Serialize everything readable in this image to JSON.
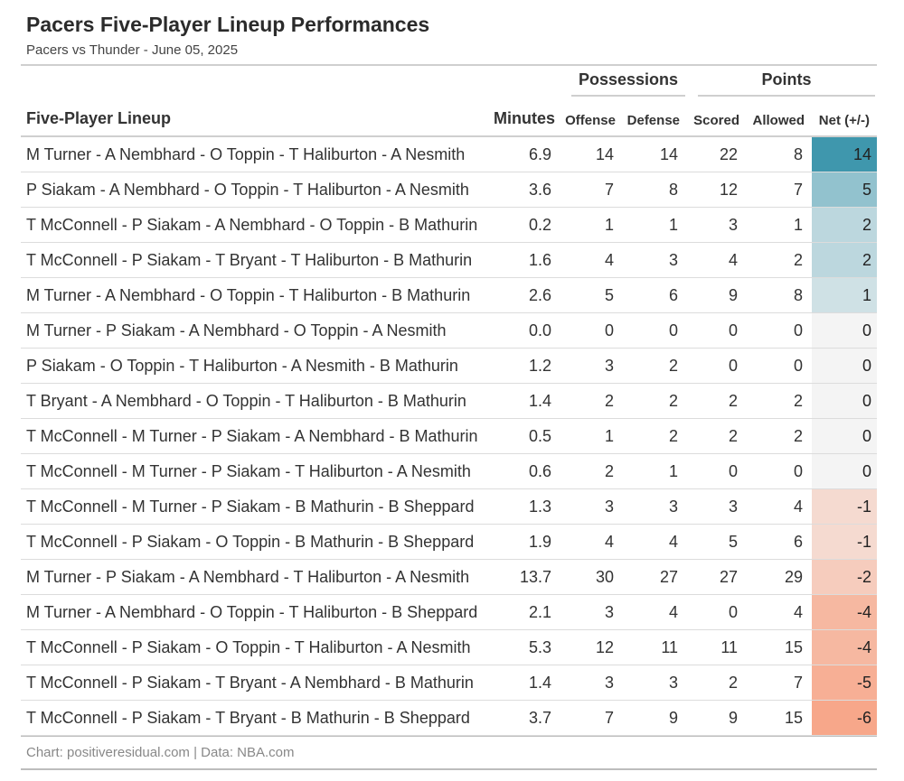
{
  "header": {
    "title": "Pacers Five-Player Lineup Performances",
    "subtitle": "Pacers vs Thunder - June 05, 2025"
  },
  "groups": {
    "possessions": "Possessions",
    "points": "Points"
  },
  "columns": {
    "lineup": "Five-Player Lineup",
    "minutes": "Minutes",
    "offense": "Offense",
    "defense": "Defense",
    "scored": "Scored",
    "allowed": "Allowed",
    "net": "Net (+/-)"
  },
  "footer": "Chart: positiveresidual.com | Data: NBA.com",
  "colors": {
    "positive": "#3f97ad",
    "neutral": "#f4f4f4",
    "negative": "#f7a78a"
  },
  "chart_data": {
    "type": "table",
    "columns": [
      "Five-Player Lineup",
      "Minutes",
      "Offense",
      "Defense",
      "Scored",
      "Allowed",
      "Net (+/-)"
    ],
    "rows": [
      {
        "lineup": "M Turner - A Nembhard - O Toppin - T Haliburton - A Nesmith",
        "minutes": "6.9",
        "offense": 14,
        "defense": 14,
        "scored": 22,
        "allowed": 8,
        "net": 14
      },
      {
        "lineup": "P Siakam - A Nembhard - O Toppin - T Haliburton - A Nesmith",
        "minutes": "3.6",
        "offense": 7,
        "defense": 8,
        "scored": 12,
        "allowed": 7,
        "net": 5
      },
      {
        "lineup": "T McConnell - P Siakam - A Nembhard - O Toppin - B Mathurin",
        "minutes": "0.2",
        "offense": 1,
        "defense": 1,
        "scored": 3,
        "allowed": 1,
        "net": 2
      },
      {
        "lineup": "T McConnell - P Siakam - T Bryant - T Haliburton - B Mathurin",
        "minutes": "1.6",
        "offense": 4,
        "defense": 3,
        "scored": 4,
        "allowed": 2,
        "net": 2
      },
      {
        "lineup": "M Turner - A Nembhard - O Toppin - T Haliburton - B Mathurin",
        "minutes": "2.6",
        "offense": 5,
        "defense": 6,
        "scored": 9,
        "allowed": 8,
        "net": 1
      },
      {
        "lineup": "M Turner - P Siakam - A Nembhard - O Toppin - A Nesmith",
        "minutes": "0.0",
        "offense": 0,
        "defense": 0,
        "scored": 0,
        "allowed": 0,
        "net": 0
      },
      {
        "lineup": "P Siakam - O Toppin - T Haliburton - A Nesmith - B Mathurin",
        "minutes": "1.2",
        "offense": 3,
        "defense": 2,
        "scored": 0,
        "allowed": 0,
        "net": 0
      },
      {
        "lineup": "T Bryant - A Nembhard - O Toppin - T Haliburton - B Mathurin",
        "minutes": "1.4",
        "offense": 2,
        "defense": 2,
        "scored": 2,
        "allowed": 2,
        "net": 0
      },
      {
        "lineup": "T McConnell - M Turner - P Siakam - A Nembhard - B Mathurin",
        "minutes": "0.5",
        "offense": 1,
        "defense": 2,
        "scored": 2,
        "allowed": 2,
        "net": 0
      },
      {
        "lineup": "T McConnell - M Turner - P Siakam - T Haliburton - A Nesmith",
        "minutes": "0.6",
        "offense": 2,
        "defense": 1,
        "scored": 0,
        "allowed": 0,
        "net": 0
      },
      {
        "lineup": "T McConnell - M Turner - P Siakam - B Mathurin - B Sheppard",
        "minutes": "1.3",
        "offense": 3,
        "defense": 3,
        "scored": 3,
        "allowed": 4,
        "net": -1
      },
      {
        "lineup": "T McConnell - P Siakam - O Toppin - B Mathurin - B Sheppard",
        "minutes": "1.9",
        "offense": 4,
        "defense": 4,
        "scored": 5,
        "allowed": 6,
        "net": -1
      },
      {
        "lineup": "M Turner - P Siakam - A Nembhard - T Haliburton - A Nesmith",
        "minutes": "13.7",
        "offense": 30,
        "defense": 27,
        "scored": 27,
        "allowed": 29,
        "net": -2
      },
      {
        "lineup": "M Turner - A Nembhard - O Toppin - T Haliburton - B Sheppard",
        "minutes": "2.1",
        "offense": 3,
        "defense": 4,
        "scored": 0,
        "allowed": 4,
        "net": -4
      },
      {
        "lineup": "T McConnell - P Siakam - O Toppin - T Haliburton - A Nesmith",
        "minutes": "5.3",
        "offense": 12,
        "defense": 11,
        "scored": 11,
        "allowed": 15,
        "net": -4
      },
      {
        "lineup": "T McConnell - P Siakam - T Bryant - A Nembhard - B Mathurin",
        "minutes": "1.4",
        "offense": 3,
        "defense": 3,
        "scored": 2,
        "allowed": 7,
        "net": -5
      },
      {
        "lineup": "T McConnell - P Siakam - T Bryant - B Mathurin - B Sheppard",
        "minutes": "3.7",
        "offense": 7,
        "defense": 9,
        "scored": 9,
        "allowed": 15,
        "net": -6
      }
    ]
  }
}
